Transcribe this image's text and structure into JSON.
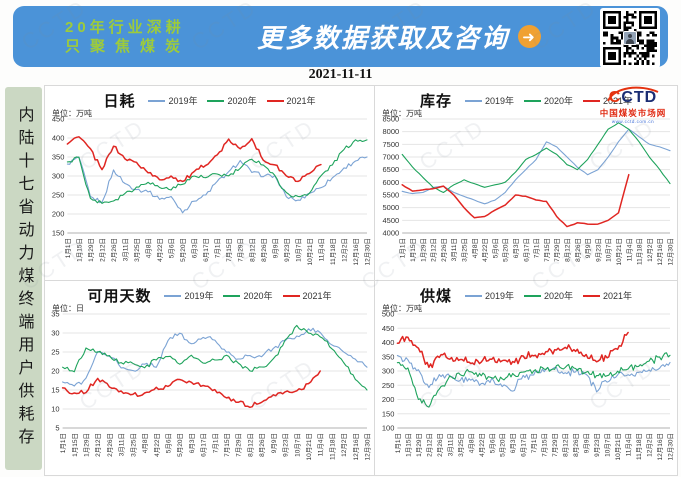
{
  "watermark": {
    "text": "CCTD"
  },
  "header": {
    "slogan_line1": "20年行业深耕",
    "slogan_line2": "只聚焦煤炭",
    "title": "更多数据获取及咨询",
    "arrow_icon": "➜"
  },
  "date": "2021-11-11",
  "sidebar": {
    "title": "内陆十七省动力煤终端用户供耗存"
  },
  "logo": {
    "word": "CCTD",
    "site": "中国煤炭市场网",
    "url": "www.cctd.com.cn"
  },
  "colors": {
    "header_bg": "#4b93d8",
    "slogan_green": "#9dcb3b",
    "arrow_orange": "#f0a132",
    "sidebar_bg": "#cbd8c3",
    "series_2019": "#7ba3d4",
    "series_2020": "#1ea35c",
    "series_2021": "#e02622",
    "gridline": "#e5e5e5",
    "axis": "#b0b0b0"
  },
  "chart_data": [
    {
      "type": "line",
      "title": "日耗",
      "unit": "单位：万吨",
      "ylim": [
        150,
        450
      ],
      "ystep": 50,
      "legend_position": "top",
      "grid": true,
      "jitter": 7,
      "subdiv": 5,
      "categories": [
        "1月1日",
        "1月15日",
        "1月29日",
        "2月12日",
        "2月26日",
        "3月11日",
        "3月25日",
        "4月8日",
        "4月22日",
        "5月6日",
        "5月20日",
        "6月3日",
        "6月17日",
        "7月1日",
        "7月15日",
        "7月29日",
        "8月12日",
        "8月26日",
        "9月9日",
        "9月23日",
        "10月7日",
        "10月21日",
        "11月4日",
        "11月18日",
        "12月2日",
        "12月16日",
        "12月30日"
      ],
      "series": [
        {
          "name": "2019年",
          "values": [
            330,
            350,
            245,
            230,
            315,
            280,
            265,
            260,
            240,
            245,
            205,
            235,
            250,
            285,
            310,
            340,
            310,
            300,
            300,
            245,
            235,
            255,
            270,
            295,
            320,
            340,
            350
          ]
        },
        {
          "name": "2020年",
          "values": [
            335,
            350,
            240,
            230,
            235,
            255,
            270,
            285,
            270,
            265,
            280,
            300,
            295,
            305,
            300,
            320,
            345,
            330,
            300,
            255,
            245,
            255,
            300,
            330,
            370,
            395,
            395
          ]
        },
        {
          "name": "2021年",
          "values": [
            385,
            405,
            370,
            315,
            380,
            345,
            335,
            310,
            290,
            300,
            285,
            310,
            330,
            355,
            395,
            370,
            400,
            340,
            330,
            300,
            285,
            305,
            330,
            null,
            null,
            null,
            null
          ]
        }
      ]
    },
    {
      "type": "line",
      "title": "库存",
      "unit": "单位：万吨",
      "ylim": [
        4000,
        8500
      ],
      "ystep": 500,
      "legend_position": "top",
      "grid": true,
      "jitter": 15,
      "subdiv": 3,
      "categories": [
        "1月1日",
        "1月15日",
        "1月29日",
        "2月12日",
        "2月26日",
        "3月11日",
        "3月25日",
        "4月8日",
        "4月22日",
        "5月6日",
        "5月20日",
        "6月3日",
        "6月17日",
        "7月1日",
        "7月15日",
        "7月29日",
        "8月12日",
        "8月26日",
        "9月9日",
        "9月23日",
        "10月7日",
        "10月21日",
        "11月4日",
        "11月18日",
        "12月2日",
        "12月16日",
        "12月30日"
      ],
      "series": [
        {
          "name": "2019年",
          "values": [
            5650,
            5550,
            5600,
            5800,
            5850,
            5600,
            5450,
            5300,
            5150,
            5300,
            5600,
            6100,
            6500,
            6900,
            7600,
            7400,
            7000,
            6600,
            6300,
            6500,
            7000,
            7600,
            8100,
            7800,
            7500,
            7400,
            7250
          ]
        },
        {
          "name": "2020年",
          "values": [
            7100,
            6600,
            6200,
            5800,
            5600,
            5900,
            6100,
            5950,
            5800,
            5900,
            6000,
            6400,
            6900,
            7100,
            7350,
            7100,
            6700,
            6500,
            6900,
            7500,
            8100,
            8350,
            8100,
            7600,
            7000,
            6500,
            5950
          ]
        },
        {
          "name": "2021年",
          "values": [
            5900,
            5650,
            5700,
            5750,
            5850,
            5500,
            5000,
            4600,
            4650,
            4900,
            5100,
            5500,
            5450,
            5300,
            5250,
            4650,
            4250,
            4400,
            4350,
            4350,
            4500,
            4800,
            6300,
            null,
            null,
            null,
            null
          ]
        }
      ]
    },
    {
      "type": "line",
      "title": "可用天数",
      "unit": "单位：日",
      "ylim": [
        5,
        35
      ],
      "ystep": 5,
      "legend_position": "top",
      "grid": true,
      "jitter": 0.8,
      "subdiv": 5,
      "categories": [
        "1月1日",
        "1月15日",
        "1月29日",
        "2月12日",
        "2月26日",
        "3月11日",
        "3月25日",
        "4月8日",
        "4月22日",
        "5月6日",
        "5月20日",
        "6月3日",
        "6月17日",
        "7月1日",
        "7月15日",
        "7月29日",
        "8月12日",
        "8月26日",
        "9月9日",
        "9月23日",
        "10月7日",
        "10月21日",
        "11月4日",
        "11月18日",
        "12月2日",
        "12月16日",
        "12月30日"
      ],
      "series": [
        {
          "name": "2019年",
          "values": [
            17,
            16,
            18,
            25,
            24,
            21,
            20,
            22,
            21,
            28,
            30,
            27,
            29,
            28,
            25,
            23,
            24,
            24,
            26,
            28,
            29,
            31,
            30,
            27,
            25,
            23,
            21
          ]
        },
        {
          "name": "2020年",
          "values": [
            21,
            20,
            26,
            25,
            24,
            22,
            22,
            21,
            23,
            24,
            22,
            24,
            22,
            23,
            24,
            22,
            20,
            21,
            23,
            28,
            32,
            30,
            29,
            26,
            22,
            18,
            15
          ]
        },
        {
          "name": "2021年",
          "values": [
            15.5,
            14,
            14.5,
            18,
            16,
            14.5,
            14,
            14,
            15.5,
            16,
            18,
            17,
            16,
            15,
            13,
            12,
            10.5,
            12,
            13.5,
            14.5,
            15,
            16.5,
            20,
            null,
            null,
            null,
            null
          ]
        }
      ]
    },
    {
      "type": "line",
      "title": "供煤",
      "unit": "单位：万吨",
      "ylim": [
        100,
        500
      ],
      "ystep": 50,
      "legend_position": "top",
      "grid": true,
      "jitter": 16,
      "subdiv": 6,
      "categories": [
        "1月1日",
        "1月15日",
        "1月29日",
        "2月12日",
        "2月26日",
        "3月11日",
        "3月25日",
        "4月8日",
        "4月22日",
        "5月6日",
        "5月20日",
        "6月3日",
        "6月17日",
        "7月1日",
        "7月15日",
        "7月29日",
        "8月12日",
        "8月26日",
        "9月9日",
        "9月23日",
        "10月7日",
        "10月21日",
        "11月4日",
        "11月18日",
        "12月2日",
        "12月16日",
        "12月30日"
      ],
      "series": [
        {
          "name": "2019年",
          "values": [
            350,
            340,
            300,
            240,
            290,
            280,
            270,
            265,
            255,
            270,
            250,
            230,
            280,
            290,
            300,
            310,
            295,
            300,
            290,
            230,
            265,
            290,
            285,
            295,
            300,
            310,
            330
          ]
        },
        {
          "name": "2020年",
          "values": [
            330,
            310,
            200,
            175,
            240,
            280,
            290,
            300,
            285,
            280,
            270,
            290,
            295,
            300,
            305,
            310,
            315,
            305,
            300,
            280,
            285,
            300,
            310,
            320,
            335,
            345,
            355
          ]
        },
        {
          "name": "2021年",
          "values": [
            400,
            420,
            380,
            310,
            350,
            345,
            340,
            330,
            335,
            345,
            335,
            330,
            350,
            355,
            360,
            370,
            385,
            370,
            355,
            335,
            350,
            380,
            435,
            null,
            null,
            null,
            null
          ]
        }
      ]
    }
  ]
}
